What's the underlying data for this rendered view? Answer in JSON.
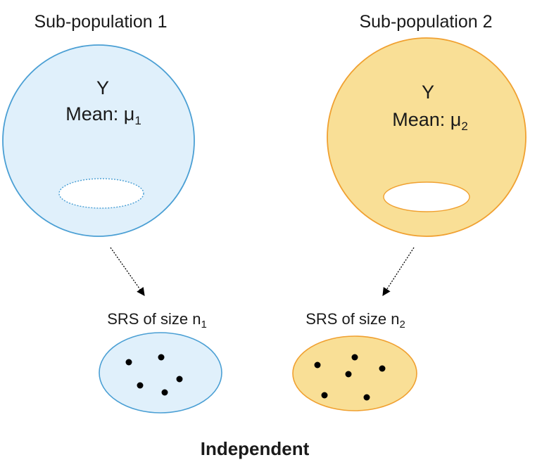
{
  "colors": {
    "blue_fill": "#e0f0fb",
    "blue_stroke": "#4a9fd4",
    "orange_fill": "#f9df96",
    "orange_stroke": "#f0a030",
    "hole_fill": "#ffffff",
    "dot": "#000000",
    "arrow": "#000000"
  },
  "population_1": {
    "title": "Sub-population 1",
    "variable": "Y",
    "mean_prefix": "Mean: μ",
    "mean_subscript": "1"
  },
  "population_2": {
    "title": "Sub-population 2",
    "variable": "Y",
    "mean_prefix": "Mean: μ",
    "mean_subscript": "2"
  },
  "sample_1": {
    "label_prefix": "SRS of size n",
    "label_subscript": "1",
    "dot_count": 5
  },
  "sample_2": {
    "label_prefix": "SRS of size n",
    "label_subscript": "2",
    "dot_count": 6
  },
  "footer": "Independent"
}
